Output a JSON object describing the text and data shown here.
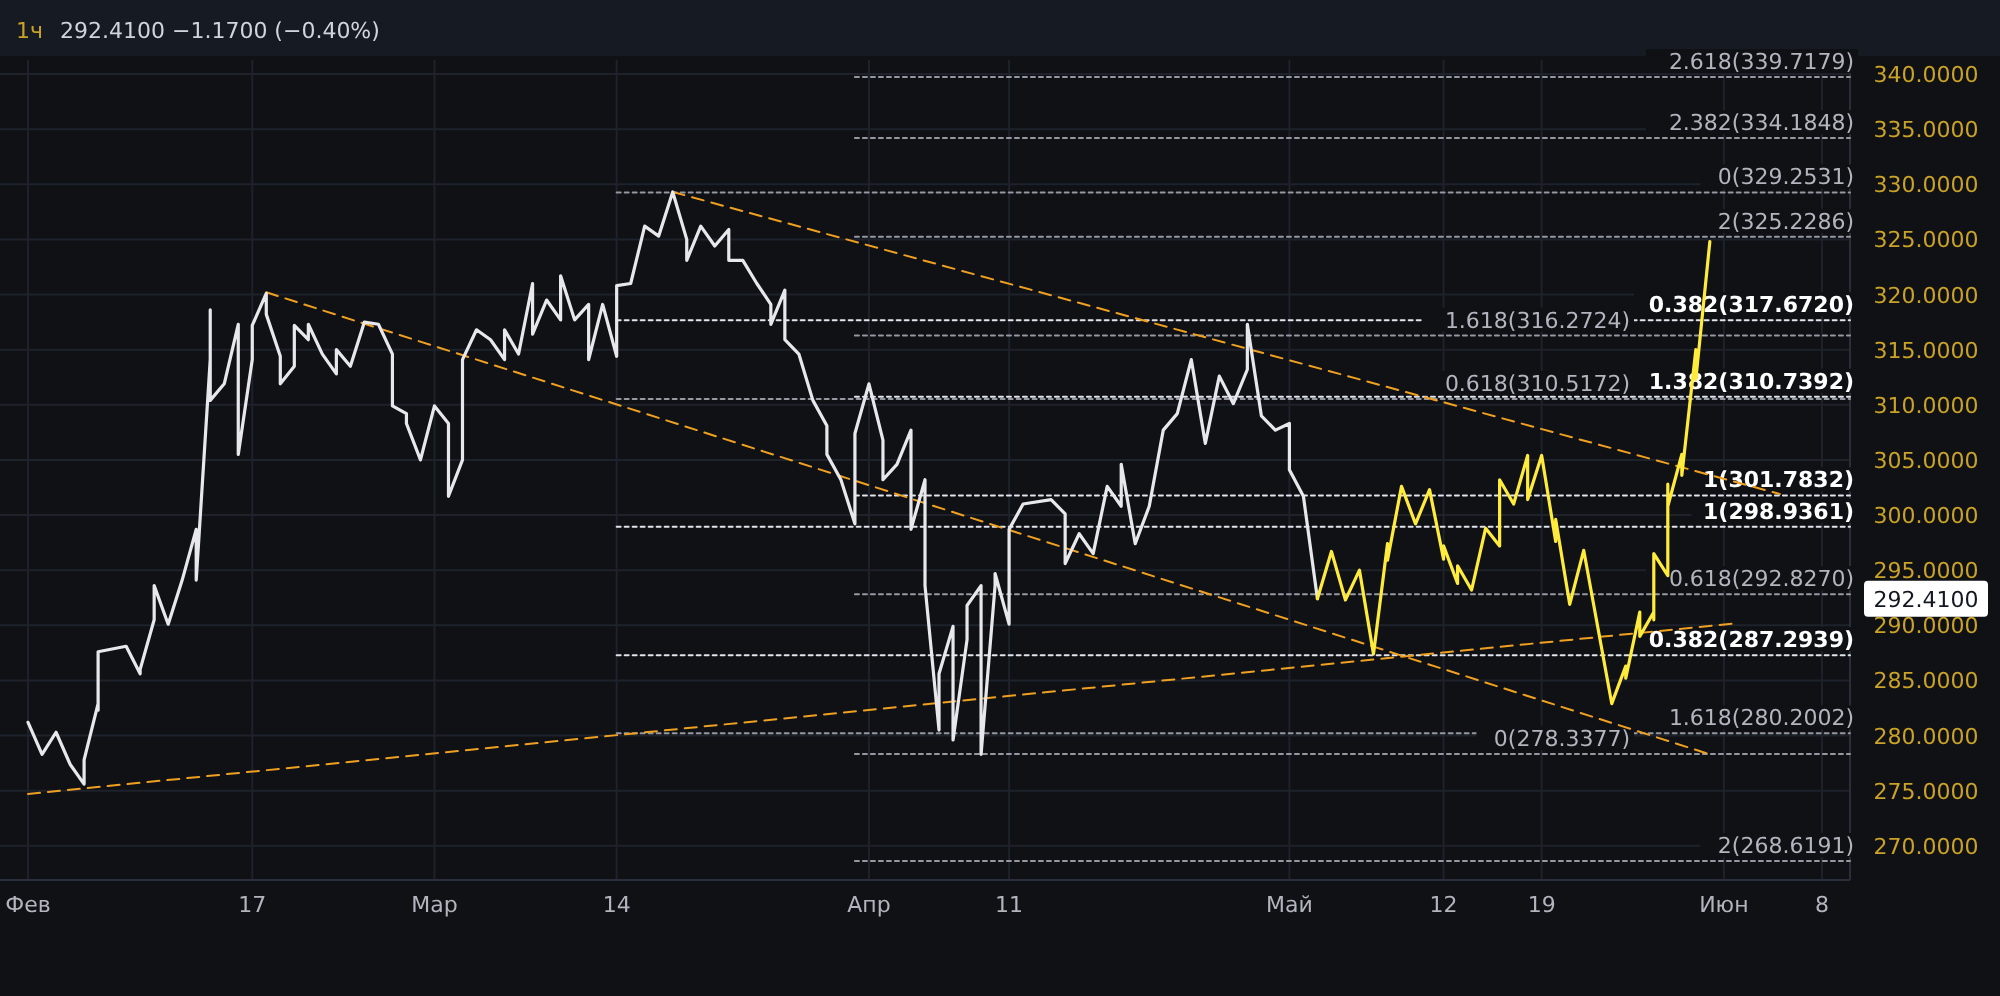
{
  "chart_data": {
    "type": "line",
    "title": "1ч",
    "subtitle": "292.4100 −1.1700 (−0.40%)",
    "xlim": [
      "--01-30",
      "--06-10"
    ],
    "ylim": [
      266.9,
      341.27
    ],
    "xticks": [
      {
        "value": "--02-01",
        "label": "Фев"
      },
      {
        "value": "--02-17",
        "label": "17"
      },
      {
        "value": "--03-01",
        "label": "Мар"
      },
      {
        "value": "--03-14",
        "label": "14"
      },
      {
        "value": "--04-01",
        "label": "Апр"
      },
      {
        "value": "--04-11",
        "label": "11"
      },
      {
        "value": "--05-01",
        "label": "Май"
      },
      {
        "value": "--05-12",
        "label": "12"
      },
      {
        "value": "--05-19",
        "label": "19"
      },
      {
        "value": "--06-01",
        "label": "Июн"
      },
      {
        "value": "--06-08",
        "label": "8"
      }
    ],
    "yticks": [
      {
        "value": 270,
        "label": "270.0000"
      },
      {
        "value": 275,
        "label": "275.0000"
      },
      {
        "value": 280,
        "label": "280.0000"
      },
      {
        "value": 285,
        "label": "285.0000"
      },
      {
        "value": 290,
        "label": "290.0000"
      },
      {
        "value": 295,
        "label": "295.0000"
      },
      {
        "value": 300,
        "label": "300.0000"
      },
      {
        "value": 305,
        "label": "305.0000"
      },
      {
        "value": 310,
        "label": "310.0000"
      },
      {
        "value": 315,
        "label": "315.0000"
      },
      {
        "value": 320,
        "label": "320.0000"
      },
      {
        "value": 325,
        "label": "325.0000"
      },
      {
        "value": 330,
        "label": "330.0000"
      },
      {
        "value": 335,
        "label": "335.0000"
      },
      {
        "value": 340,
        "label": "340.0000"
      }
    ],
    "grid": true,
    "annotations": [
      "292.4100"
    ],
    "series": [
      {
        "color": "#9598a1",
        "line_style": "dotted",
        "name": "2.618(339.7179)",
        "x": [
          "--03-31",
          "--06-10"
        ],
        "values": [
          339.7179,
          339.7179
        ]
      },
      {
        "color": "#9598a1",
        "line_style": "dotted",
        "name": "2.382(334.1848)",
        "x": [
          "--03-31",
          "--06-10"
        ],
        "values": [
          334.1848,
          334.1848
        ]
      },
      {
        "color": "#9598a1",
        "line_style": "dotted",
        "name": "0(329.2531)",
        "x": [
          "--03-14",
          "--06-10"
        ],
        "values": [
          329.2531,
          329.2531
        ]
      },
      {
        "color": "#9598a1",
        "line_style": "dotted",
        "name": "2(325.2286)",
        "x": [
          "--03-31",
          "--06-10"
        ],
        "values": [
          325.2286,
          325.2286
        ]
      },
      {
        "color": "#e0e3eb",
        "line_style": "dotted",
        "name": "0.382(317.6720)",
        "x": [
          "--03-14",
          "--06-10"
        ],
        "values": [
          317.672,
          317.672
        ]
      },
      {
        "color": "#9598a1",
        "line_style": "dotted",
        "name": "1.618(316.2724)",
        "x": [
          "--03-31",
          "--06-10"
        ],
        "values": [
          316.2724,
          316.2724
        ]
      },
      {
        "color": "#e0e3eb",
        "line_style": "dotted",
        "name": "1.382(310.7392)",
        "x": [
          "--03-31",
          "--06-10"
        ],
        "values": [
          310.7392,
          310.7392
        ]
      },
      {
        "color": "#9598a1",
        "line_style": "dotted",
        "name": "0.618(310.5172)",
        "x": [
          "--03-14",
          "--06-10"
        ],
        "values": [
          310.5172,
          310.5172
        ]
      },
      {
        "color": "#e0e3eb",
        "line_style": "dotted",
        "name": "1(301.7832)",
        "x": [
          "--03-31",
          "--06-10"
        ],
        "values": [
          301.7832,
          301.7832
        ]
      },
      {
        "color": "#e0e3eb",
        "line_style": "dotted",
        "name": "1(298.9361)",
        "x": [
          "--03-14",
          "--06-10"
        ],
        "values": [
          298.9361,
          298.9361
        ]
      },
      {
        "color": "#9598a1",
        "line_style": "dotted",
        "name": "0.618(292.8270)",
        "x": [
          "--03-31",
          "--06-10"
        ],
        "values": [
          292.827,
          292.827
        ]
      },
      {
        "color": "#e0e3eb",
        "line_style": "dotted",
        "name": "0.382(287.2939)",
        "x": [
          "--03-14",
          "--06-10"
        ],
        "values": [
          287.2939,
          287.2939
        ]
      },
      {
        "color": "#9598a1",
        "line_style": "dotted",
        "name": "1.618(280.2002)",
        "x": [
          "--03-14",
          "--06-10"
        ],
        "values": [
          280.2002,
          280.2002
        ]
      },
      {
        "color": "#9598a1",
        "line_style": "dotted",
        "name": "0(278.3377)",
        "x": [
          "--03-31",
          "--06-10"
        ],
        "values": [
          278.3377,
          278.3377
        ]
      },
      {
        "color": "#9598a1",
        "line_style": "dotted",
        "name": "2(268.6191)",
        "x": [
          "--03-31",
          "--06-10"
        ],
        "values": [
          268.6191,
          268.6191
        ]
      },
      {
        "color": "#f0a020",
        "line_style": "dashed",
        "x": [
          "--02-01",
          "--06-02"
        ],
        "values": [
          274.7,
          290.2
        ]
      },
      {
        "color": "#f0a020",
        "line_style": "dashed",
        "x": [
          "--03-18",
          "--06-05"
        ],
        "values": [
          329.3,
          301.9
        ]
      },
      {
        "color": "#f0a020",
        "line_style": "dashed",
        "x": [
          "--02-18",
          "--05-31"
        ],
        "values": [
          320.2,
          278.3
        ]
      },
      {
        "color": "#e8e8ec",
        "line_style": "solid",
        "x": [
          "--02-01",
          "--02-02",
          "--02-03",
          "--02-04",
          "--02-05",
          "--02-05",
          "--02-06",
          "--02-06",
          "--02-06",
          "--02-08",
          "--02-09",
          "--02-09",
          "--02-10",
          "--02-10",
          "--02-11",
          "--02-12",
          "--02-13",
          "--02-13",
          "--02-14",
          "--02-14",
          "--02-14",
          "--02-15",
          "--02-16",
          "--02-16",
          "--02-17",
          "--02-17",
          "--02-18",
          "--02-18",
          "--02-19",
          "--02-19",
          "--02-20",
          "--02-20",
          "--02-21",
          "--02-21",
          "--02-22",
          "--02-23",
          "--02-23",
          "--02-24",
          "--02-25",
          "--02-26",
          "--02-27",
          "--02-27",
          "--02-28",
          "--02-28",
          "--02-29",
          "--03-01",
          "--03-02",
          "--03-02",
          "--03-03",
          "--03-03",
          "--03-04",
          "--03-05",
          "--03-06",
          "--03-06",
          "--03-07",
          "--03-08",
          "--03-08",
          "--03-09",
          "--03-10",
          "--03-10",
          "--03-11",
          "--03-12",
          "--03-12",
          "--03-13",
          "--03-14",
          "--03-14",
          "--03-15",
          "--03-16",
          "--03-17",
          "--03-18",
          "--03-19",
          "--03-19",
          "--03-20",
          "--03-21",
          "--03-22",
          "--03-22",
          "--03-23",
          "--03-24",
          "--03-25",
          "--03-25",
          "--03-26",
          "--03-26",
          "--03-27",
          "--03-28",
          "--03-29",
          "--03-29",
          "--03-30",
          "--03-31",
          "--03-31",
          "--04-01",
          "--04-02",
          "--04-02",
          "--04-03",
          "--04-04",
          "--04-04",
          "--04-05",
          "--04-05",
          "--04-06",
          "--04-06",
          "--04-07",
          "--04-07",
          "--04-08",
          "--04-08",
          "--04-09",
          "--04-09",
          "--04-10",
          "--04-10",
          "--04-11",
          "--04-11",
          "--04-12",
          "--04-14",
          "--04-15",
          "--04-15",
          "--04-16",
          "--04-17",
          "--04-18",
          "--04-19",
          "--04-19",
          "--04-20",
          "--04-21",
          "--04-22",
          "--04-23",
          "--04-24",
          "--04-25",
          "--04-26",
          "--04-27",
          "--04-28",
          "--04-28",
          "--04-29",
          "--04-30",
          "--05-01",
          "--05-01",
          "--05-02",
          "--05-03"
        ],
        "values": [
          281.2,
          278.3,
          280.3,
          277.4,
          275.6,
          277.8,
          282.9,
          282.3,
          287.6,
          288.1,
          285.6,
          286.0,
          290.5,
          293.6,
          290.1,
          294.1,
          298.7,
          294.1,
          314.1,
          318.6,
          310.4,
          311.9,
          317.3,
          305.5,
          314.1,
          317.2,
          320.1,
          318.2,
          314.4,
          311.9,
          313.5,
          317.2,
          315.9,
          317.3,
          314.6,
          312.8,
          315.0,
          313.5,
          317.5,
          317.3,
          314.6,
          309.9,
          309.2,
          308.3,
          305.0,
          309.9,
          308.3,
          301.7,
          305.0,
          314.1,
          316.8,
          315.9,
          314.1,
          316.8,
          314.6,
          321.0,
          316.4,
          319.5,
          317.7,
          321.7,
          317.7,
          319.1,
          314.1,
          319.1,
          314.4,
          320.8,
          321.0,
          326.2,
          325.3,
          329.3,
          325.0,
          323.1,
          326.2,
          324.4,
          325.9,
          323.1,
          323.1,
          321.0,
          319.1,
          317.3,
          320.4,
          315.9,
          314.6,
          310.4,
          308.1,
          305.5,
          303.2,
          299.2,
          307.4,
          311.9,
          306.8,
          303.2,
          304.6,
          307.7,
          298.7,
          303.2,
          293.6,
          280.5,
          285.6,
          289.9,
          279.6,
          288.7,
          291.8,
          293.6,
          278.3,
          293.6,
          294.7,
          290.1,
          298.7,
          301.0,
          301.4,
          300.1,
          295.6,
          298.3,
          296.5,
          302.6,
          300.8,
          304.6,
          297.4,
          300.8,
          307.7,
          309.2,
          314.1,
          306.5,
          312.6,
          310.1,
          313.2,
          317.3,
          309.0,
          307.7,
          308.3,
          304.1,
          301.7,
          292.41
        ]
      },
      {
        "color": "#ffeb3b",
        "line_style": "solid",
        "x": [
          "--05-03",
          "--05-04",
          "--05-05",
          "--05-06",
          "--05-07",
          "--05-08",
          "--05-08",
          "--05-09",
          "--05-10",
          "--05-11",
          "--05-12",
          "--05-12",
          "--05-13",
          "--05-13",
          "--05-14",
          "--05-15",
          "--05-16",
          "--05-16",
          "--05-17",
          "--05-18",
          "--05-18",
          "--05-19",
          "--05-20",
          "--05-20",
          "--05-21",
          "--05-22",
          "--05-24",
          "--05-25",
          "--05-25",
          "--05-26",
          "--05-26",
          "--05-27",
          "--05-27",
          "--05-27",
          "--05-28",
          "--05-28",
          "--05-28",
          "--05-29",
          "--05-29",
          "--05-30",
          "--05-30",
          "--05-31"
        ],
        "values": [
          292.41,
          296.7,
          292.3,
          295.0,
          287.4,
          297.4,
          295.9,
          302.6,
          299.2,
          302.3,
          296.0,
          297.2,
          293.8,
          295.4,
          293.2,
          298.8,
          297.2,
          303.2,
          301.0,
          305.4,
          301.4,
          305.4,
          297.6,
          299.6,
          291.9,
          296.8,
          282.9,
          286.3,
          285.2,
          291.2,
          289.0,
          291.2,
          290.5,
          296.5,
          294.5,
          302.8,
          300.8,
          305.5,
          303.6,
          315.0,
          312.3,
          324.8
        ]
      }
    ]
  }
}
